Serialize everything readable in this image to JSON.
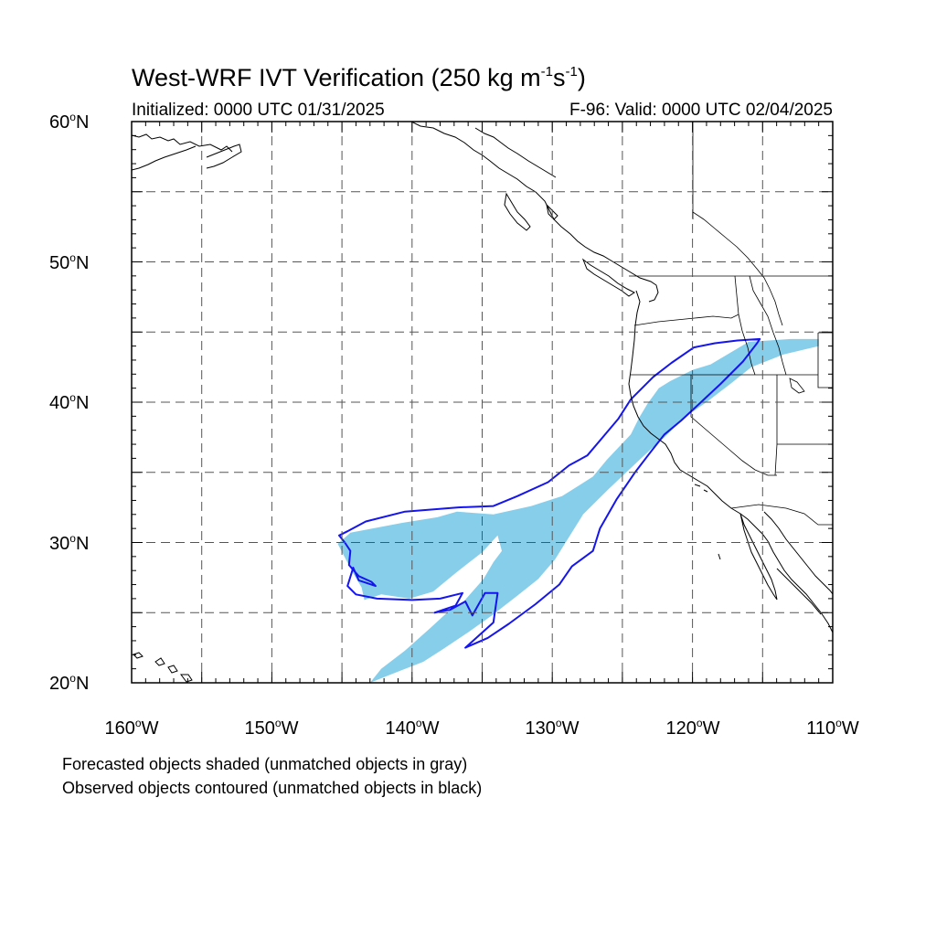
{
  "title": {
    "main": "West-WRF IVT Verification (250 kg m",
    "exp1": "-1",
    "mid": "s",
    "exp2": "-1",
    "end": ")"
  },
  "subtitle_left": "Initialized: 0000 UTC 01/31/2025",
  "subtitle_right": "F-96: Valid: 0000 UTC 02/04/2025",
  "notes": [
    "Forecasted objects shaded (unmatched objects in gray)",
    "Observed objects contoured (unmatched objects in black)"
  ],
  "map": {
    "lat_range": [
      20,
      60
    ],
    "lon_range": [
      -160,
      -110
    ],
    "lat_labels": [
      {
        "num": "60",
        "hemi": "N",
        "value": 60
      },
      {
        "num": "50",
        "hemi": "N",
        "value": 50
      },
      {
        "num": "40",
        "hemi": "N",
        "value": 40
      },
      {
        "num": "30",
        "hemi": "N",
        "value": 30
      },
      {
        "num": "20",
        "hemi": "N",
        "value": 20
      }
    ],
    "lon_labels": [
      {
        "num": "160",
        "hemi": "W",
        "value": -160
      },
      {
        "num": "150",
        "hemi": "W",
        "value": -150
      },
      {
        "num": "140",
        "hemi": "W",
        "value": -140
      },
      {
        "num": "130",
        "hemi": "W",
        "value": -130
      },
      {
        "num": "120",
        "hemi": "W",
        "value": -120
      },
      {
        "num": "110",
        "hemi": "W",
        "value": -110
      }
    ],
    "gridlines_lat": [
      25,
      30,
      35,
      40,
      45,
      50,
      55
    ],
    "gridlines_lon": [
      -155,
      -150,
      -145,
      -140,
      -135,
      -130,
      -125,
      -120,
      -115
    ],
    "colors": {
      "forecast_fill": "#87ceeb",
      "observed_contour": "#1515ee",
      "coastline": "#000000",
      "grid": "#555555"
    },
    "forecast_object": [
      [
        -116.0,
        44.3
      ],
      [
        -113.0,
        44.5
      ],
      [
        -111.0,
        44.5
      ],
      [
        -111.0,
        44.0
      ],
      [
        -113.5,
        43.4
      ],
      [
        -115.8,
        42.5
      ],
      [
        -117.3,
        41.3
      ],
      [
        -119.0,
        40.0
      ],
      [
        -120.3,
        39.1
      ],
      [
        -121.2,
        38.3
      ],
      [
        -122.0,
        37.5
      ],
      [
        -122.7,
        36.9
      ],
      [
        -124.2,
        35.5
      ],
      [
        -126.0,
        33.8
      ],
      [
        -127.8,
        32.0
      ],
      [
        -128.8,
        30.4
      ],
      [
        -129.8,
        28.8
      ],
      [
        -131.0,
        27.4
      ],
      [
        -132.5,
        26.2
      ],
      [
        -134.3,
        24.8
      ],
      [
        -136.0,
        23.6
      ],
      [
        -137.8,
        22.4
      ],
      [
        -139.2,
        21.5
      ],
      [
        -141.5,
        20.6
      ],
      [
        -143.0,
        20.0
      ],
      [
        -142.2,
        21.0
      ],
      [
        -140.5,
        22.3
      ],
      [
        -138.7,
        23.9
      ],
      [
        -137.4,
        25.1
      ],
      [
        -136.4,
        25.7
      ],
      [
        -134.9,
        27.4
      ],
      [
        -134.2,
        28.6
      ],
      [
        -133.6,
        29.4
      ],
      [
        -133.9,
        30.5
      ],
      [
        -135.0,
        29.3
      ],
      [
        -136.8,
        27.9
      ],
      [
        -138.5,
        26.5
      ],
      [
        -140.2,
        26.0
      ],
      [
        -142.2,
        26.3
      ],
      [
        -143.4,
        25.9
      ],
      [
        -143.6,
        26.8
      ],
      [
        -144.2,
        27.8
      ],
      [
        -145.3,
        29.9
      ],
      [
        -144.4,
        30.7
      ],
      [
        -142.8,
        31.0
      ],
      [
        -140.7,
        31.4
      ],
      [
        -138.2,
        31.8
      ],
      [
        -136.8,
        32.2
      ],
      [
        -134.2,
        32.0
      ],
      [
        -131.5,
        32.6
      ],
      [
        -129.3,
        33.3
      ],
      [
        -127.1,
        34.7
      ],
      [
        -126.1,
        35.9
      ],
      [
        -124.4,
        37.7
      ],
      [
        -123.8,
        38.9
      ],
      [
        -123.2,
        39.9
      ],
      [
        -122.4,
        41.0
      ],
      [
        -121.6,
        41.5
      ],
      [
        -120.0,
        42.3
      ],
      [
        -118.7,
        42.7
      ]
    ],
    "observed_object": [
      [
        -115.2,
        44.5
      ],
      [
        -116.8,
        44.4
      ],
      [
        -118.4,
        44.2
      ],
      [
        -119.9,
        43.9
      ],
      [
        -121.5,
        42.8
      ],
      [
        -122.8,
        41.8
      ],
      [
        -124.4,
        40.2
      ],
      [
        -125.3,
        38.8
      ],
      [
        -126.4,
        37.5
      ],
      [
        -127.5,
        36.2
      ],
      [
        -128.8,
        35.5
      ],
      [
        -130.3,
        34.3
      ],
      [
        -132.5,
        33.3
      ],
      [
        -134.2,
        32.6
      ],
      [
        -136.7,
        32.5
      ],
      [
        -140.5,
        32.2
      ],
      [
        -143.3,
        31.5
      ],
      [
        -144.6,
        30.8
      ],
      [
        -145.2,
        30.5
      ],
      [
        -144.8,
        30.0
      ],
      [
        -144.4,
        29.4
      ],
      [
        -144.5,
        28.4
      ],
      [
        -143.8,
        27.6
      ],
      [
        -142.9,
        27.2
      ],
      [
        -142.6,
        26.9
      ],
      [
        -143.8,
        27.3
      ],
      [
        -144.2,
        28.2
      ],
      [
        -144.6,
        26.9
      ],
      [
        -144.0,
        26.3
      ],
      [
        -142.5,
        26.0
      ],
      [
        -140.0,
        25.9
      ],
      [
        -138.0,
        26.0
      ],
      [
        -136.4,
        26.4
      ],
      [
        -136.9,
        25.5
      ],
      [
        -138.4,
        25.0
      ],
      [
        -137.3,
        25.2
      ],
      [
        -136.2,
        25.8
      ],
      [
        -135.7,
        24.8
      ],
      [
        -134.8,
        26.4
      ],
      [
        -133.9,
        26.4
      ],
      [
        -134.2,
        24.3
      ],
      [
        -136.2,
        22.5
      ],
      [
        -134.6,
        23.2
      ],
      [
        -133.1,
        24.2
      ],
      [
        -131.2,
        25.6
      ],
      [
        -129.5,
        27.0
      ],
      [
        -128.6,
        28.3
      ],
      [
        -127.1,
        29.4
      ],
      [
        -126.6,
        31.0
      ],
      [
        -125.4,
        33.1
      ],
      [
        -124.1,
        35.0
      ],
      [
        -123.1,
        36.3
      ],
      [
        -122.0,
        37.7
      ],
      [
        -120.8,
        38.7
      ],
      [
        -119.5,
        39.9
      ],
      [
        -118.0,
        41.3
      ],
      [
        -116.4,
        42.9
      ],
      [
        -115.4,
        44.2
      ]
    ]
  }
}
